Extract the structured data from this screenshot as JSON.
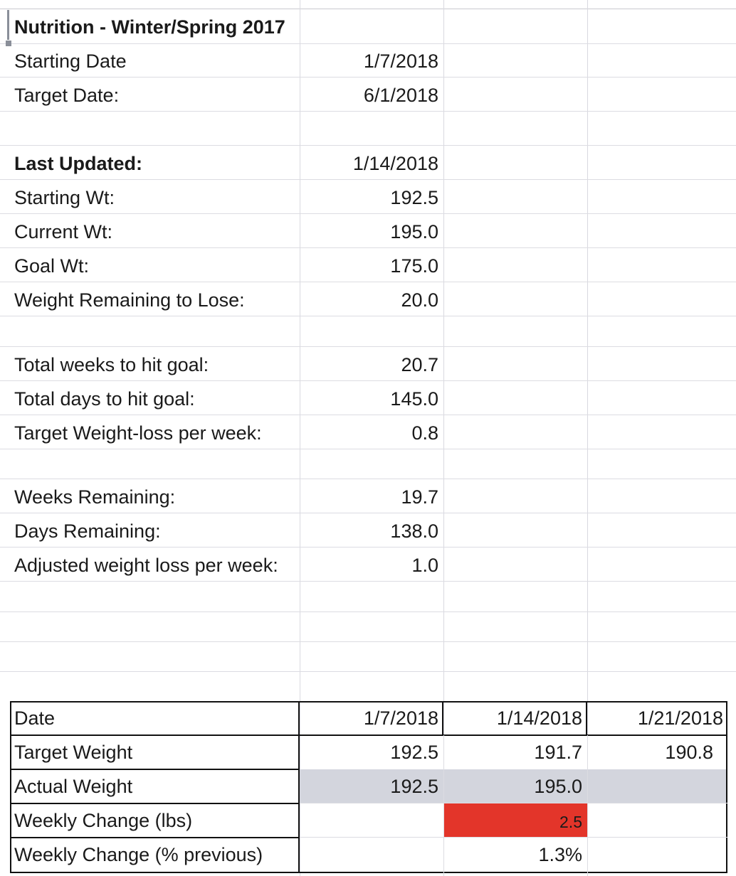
{
  "title": "Nutrition - Winter/Spring 2017",
  "summary": [
    {
      "label": "Starting Date",
      "value": "1/7/2018"
    },
    {
      "label": "Target Date:",
      "value": "6/1/2018"
    },
    {
      "label": "Last Updated:",
      "value": "1/14/2018"
    },
    {
      "label": "Starting Wt:",
      "value": "192.5"
    },
    {
      "label": "Current Wt:",
      "value": "195.0"
    },
    {
      "label": "Goal Wt:",
      "value": "175.0"
    },
    {
      "label": "Weight Remaining to Lose:",
      "value": "20.0"
    },
    {
      "label": "Total weeks to hit goal:",
      "value": "20.7"
    },
    {
      "label": "Total days to hit goal:",
      "value": "145.0"
    },
    {
      "label": "Target Weight-loss per week:",
      "value": "0.8"
    },
    {
      "label": "Weeks Remaining:",
      "value": "19.7"
    },
    {
      "label": "Days Remaining:",
      "value": "138.0"
    },
    {
      "label": "Adjusted weight loss per week:",
      "value": "1.0"
    }
  ],
  "table": {
    "rows": [
      {
        "label": "Date",
        "cells": [
          "1/7/2018",
          "1/14/2018",
          "1/21/2018"
        ]
      },
      {
        "label": "Target Weight",
        "cells": [
          "192.5",
          "191.7",
          "190.8"
        ]
      },
      {
        "label": "Actual Weight",
        "cells": [
          "192.5",
          "195.0",
          ""
        ]
      },
      {
        "label": "Weekly Change (lbs)",
        "cells": [
          "",
          "2.5",
          ""
        ]
      },
      {
        "label": "Weekly Change (% previous)",
        "cells": [
          "",
          "1.3%",
          ""
        ]
      }
    ]
  },
  "colors": {
    "highlight_gray": "#d3d5dd",
    "alert_red": "#e3352a"
  }
}
